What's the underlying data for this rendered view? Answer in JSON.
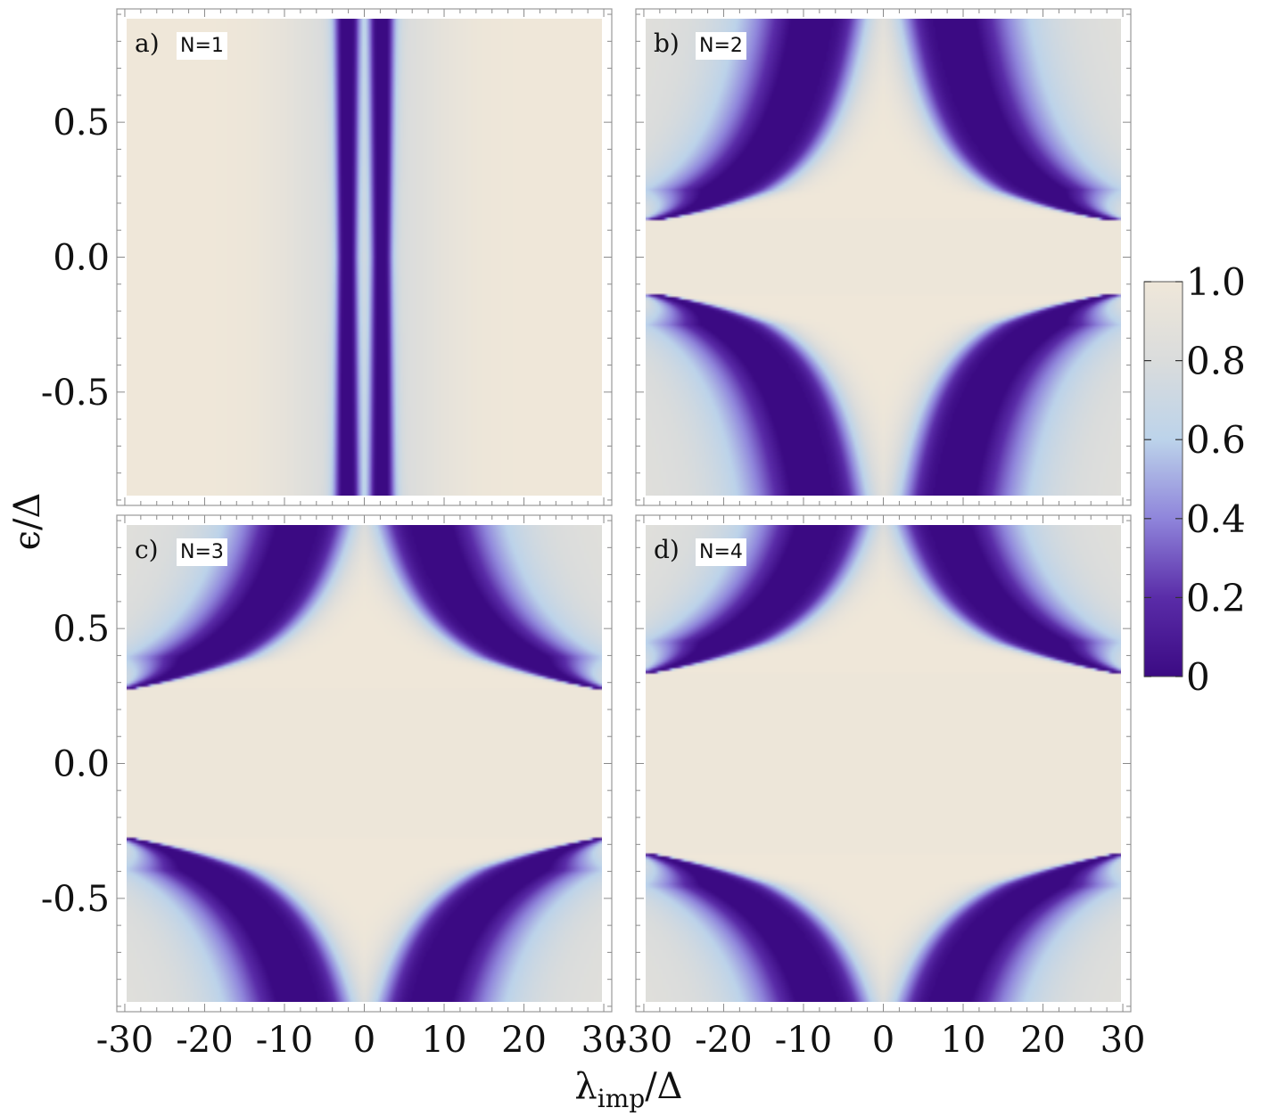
{
  "chart_data": {
    "type": "heatmap",
    "xlabel": "λimp/Δ",
    "xlabel_main": "λ",
    "xlabel_sub": "imp",
    "xlabel_tail": "/Δ",
    "ylabel": "ϵ/Δ",
    "xlim": [
      -31,
      31
    ],
    "ylim": [
      -0.92,
      0.92
    ],
    "x_ticks": [
      -30,
      -20,
      -10,
      0,
      10,
      20,
      30
    ],
    "x_tick_labels": [
      "-30",
      "-20",
      "-10",
      "0",
      "10",
      "20",
      "30"
    ],
    "y_ticks": [
      0.5,
      0.0,
      -0.5
    ],
    "y_tick_labels": [
      "0.5",
      "0.0",
      "-0.5"
    ],
    "colorbar": {
      "range": [
        0,
        1
      ],
      "tick_values": [
        1.0,
        0.8,
        0.6,
        0.4,
        0.2,
        0
      ],
      "tick_labels": [
        "1.0",
        "0.8",
        "0.6",
        "0.4",
        "0.2",
        "0"
      ],
      "colors": [
        "#3b0a83",
        "#5a2ca8",
        "#8f85db",
        "#bcd3ea",
        "#dadcdc",
        "#efe7d9"
      ]
    },
    "panels": [
      {
        "letter": "a)",
        "label": "N=1",
        "N": 1,
        "band_branches": [
          {
            "lambda_at_zero": 2.2,
            "shape": "vertical"
          }
        ]
      },
      {
        "letter": "b)",
        "label": "N=2",
        "N": 2,
        "threshold_eps_at_lambda_30": 0.14,
        "band_lambda_at_eps_0_9": 6.5
      },
      {
        "letter": "c)",
        "label": "N=3",
        "N": 3,
        "threshold_eps_at_lambda_30": 0.29,
        "band_lambda_at_eps_0_9": 6.0
      },
      {
        "letter": "d)",
        "label": "N=4",
        "N": 4,
        "threshold_eps_at_lambda_30": 0.35,
        "band_lambda_at_eps_0_9": 6.0
      }
    ]
  }
}
